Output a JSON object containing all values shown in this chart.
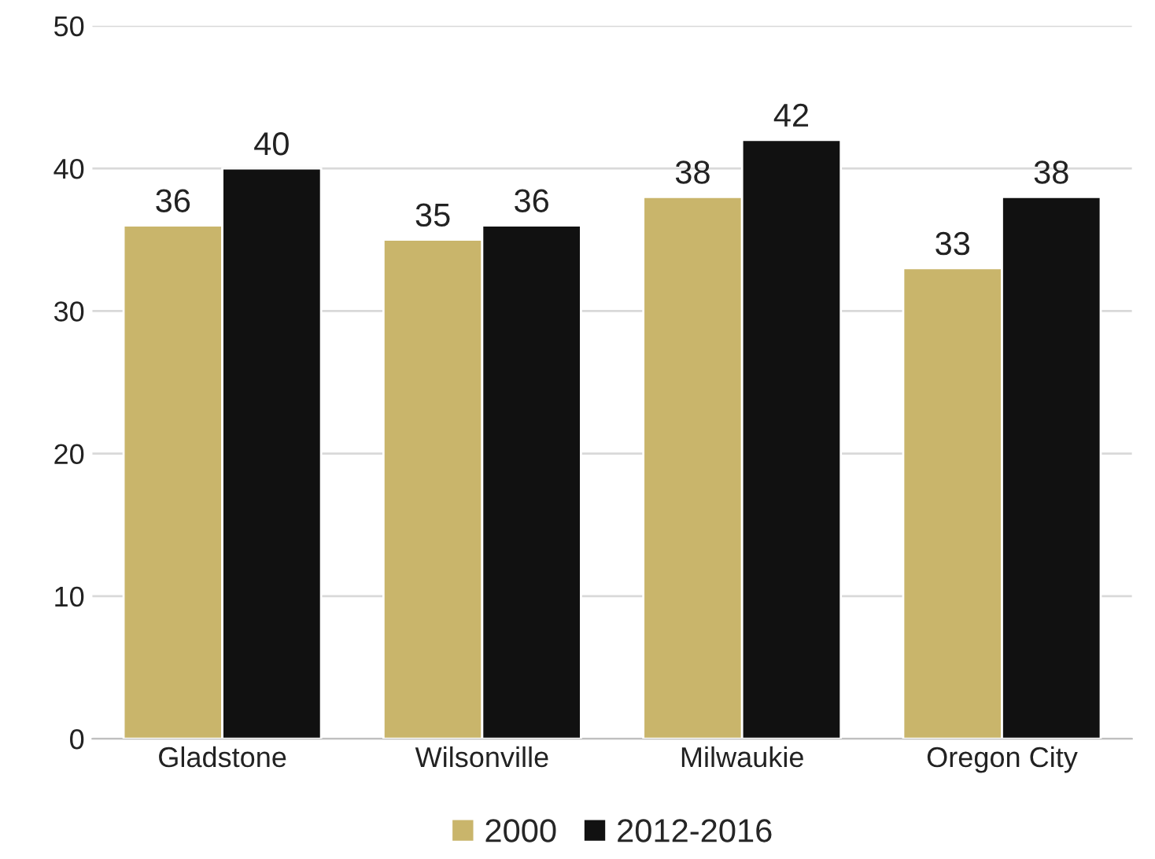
{
  "chart_data": {
    "type": "bar",
    "categories": [
      "Gladstone",
      "Wilsonville",
      "Milwaukie",
      "Oregon City"
    ],
    "series": [
      {
        "name": "2000",
        "color": "#c9b56b",
        "values": [
          36,
          35,
          38,
          33
        ]
      },
      {
        "name": "2012-2016",
        "color": "#111111",
        "values": [
          40,
          36,
          42,
          38
        ]
      }
    ],
    "ylim": [
      0,
      50
    ],
    "yticks": [
      0,
      10,
      20,
      30,
      40,
      50
    ],
    "grid": "y",
    "legend": "bottom",
    "data_labels": true
  }
}
